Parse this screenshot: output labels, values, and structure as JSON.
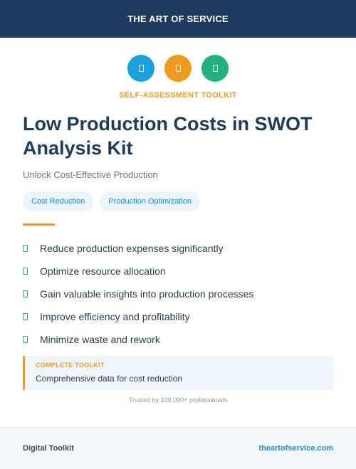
{
  "header": {
    "title": "THE ART OF SERVICE"
  },
  "icons": [
    {
      "name": "document-icon",
      "color": "#1aa0dc"
    },
    {
      "name": "chart-icon",
      "color": "#f09c1a"
    },
    {
      "name": "checklist-icon",
      "color": "#20b27e"
    }
  ],
  "eyebrow": "SELF-ASSESSMENT TOOLKIT",
  "title": "Low Production Costs in SWOT Analysis Kit",
  "subtitle": "Unlock Cost-Effective Production",
  "tags": [
    "Cost Reduction",
    "Production Optimization"
  ],
  "features": [
    "Reduce production expenses significantly",
    "Optimize resource allocation",
    "Gain valuable insights into production processes",
    "Improve efficiency and profitability",
    "Minimize waste and rework"
  ],
  "callout": {
    "label": "COMPLETE TOOLKIT",
    "text": "Comprehensive data for cost reduction"
  },
  "trust": "Trusted by 100,000+ professionals",
  "footer": {
    "left": "Digital Toolkit",
    "right": "theartofservice.com"
  },
  "colors": {
    "header_bg": "#1e3a5f",
    "accent_orange": "#f09c1a",
    "accent_blue": "#1aa0dc",
    "accent_green": "#20b27e"
  }
}
